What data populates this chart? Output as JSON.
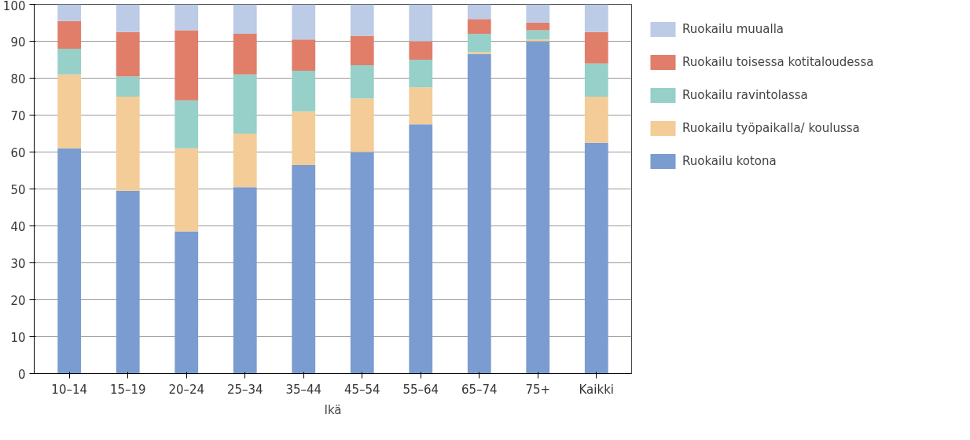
{
  "chart_data": {
    "type": "bar",
    "stacked": true,
    "xlabel": "Ikä",
    "categories": [
      "10–14",
      "15–19",
      "20–24",
      "25–34",
      "35–44",
      "45–54",
      "55–64",
      "65–74",
      "75+",
      "Kaikki"
    ],
    "series": [
      {
        "name": "Ruokailu kotona",
        "color": "#7a9cd0",
        "values": [
          61,
          49.5,
          38.5,
          50.5,
          56.5,
          60,
          67.5,
          86.5,
          90,
          62.5
        ]
      },
      {
        "name": "Ruokailu työpaikalla/ koulussa",
        "color": "#f3cc97",
        "values": [
          20,
          25.5,
          22.5,
          14.5,
          14.5,
          14.5,
          10,
          0.5,
          0.5,
          12.5
        ]
      },
      {
        "name": "Ruokailu ravintolassa",
        "color": "#96d0c8",
        "values": [
          7,
          5.5,
          13,
          16,
          11,
          9,
          7.5,
          5,
          2.5,
          9
        ]
      },
      {
        "name": "Ruokailu toisessa kotitaloudessa",
        "color": "#e07e6a",
        "values": [
          7.5,
          12,
          19,
          11,
          8.5,
          8,
          5,
          4,
          2,
          8.5
        ]
      },
      {
        "name": "Ruokailu muualla",
        "color": "#bccbe6",
        "values": [
          4.5,
          7.5,
          7,
          8,
          9.5,
          8.5,
          10,
          4,
          5,
          7.5
        ]
      }
    ],
    "ylim": [
      0,
      100
    ],
    "yticks": [
      0,
      10,
      20,
      30,
      40,
      50,
      60,
      70,
      80,
      90,
      100
    ],
    "grid": "y",
    "legend": "right"
  }
}
